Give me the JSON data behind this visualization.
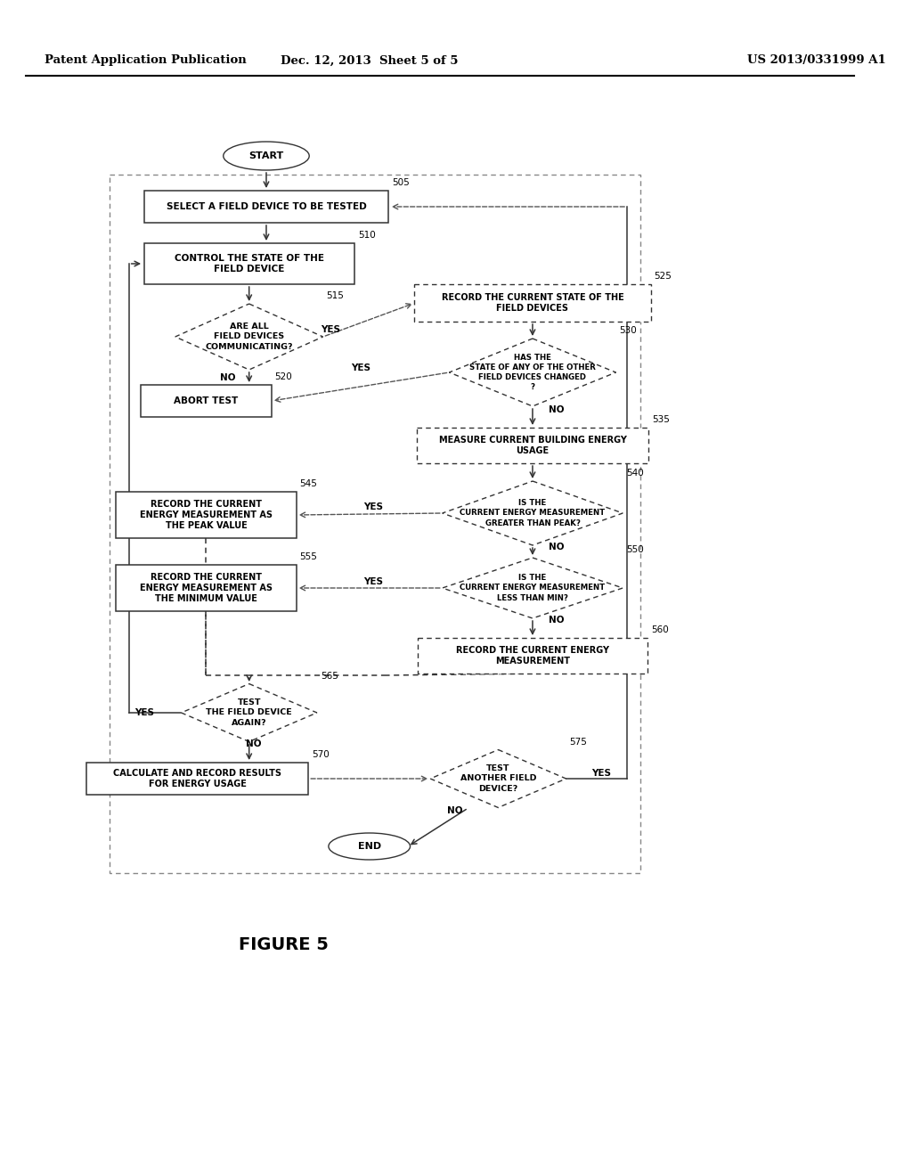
{
  "header_left": "Patent Application Publication",
  "header_center": "Dec. 12, 2013  Sheet 5 of 5",
  "header_right": "US 2013/0331999 A1",
  "figure_label": "FIGURE 5",
  "background_color": "#ffffff"
}
